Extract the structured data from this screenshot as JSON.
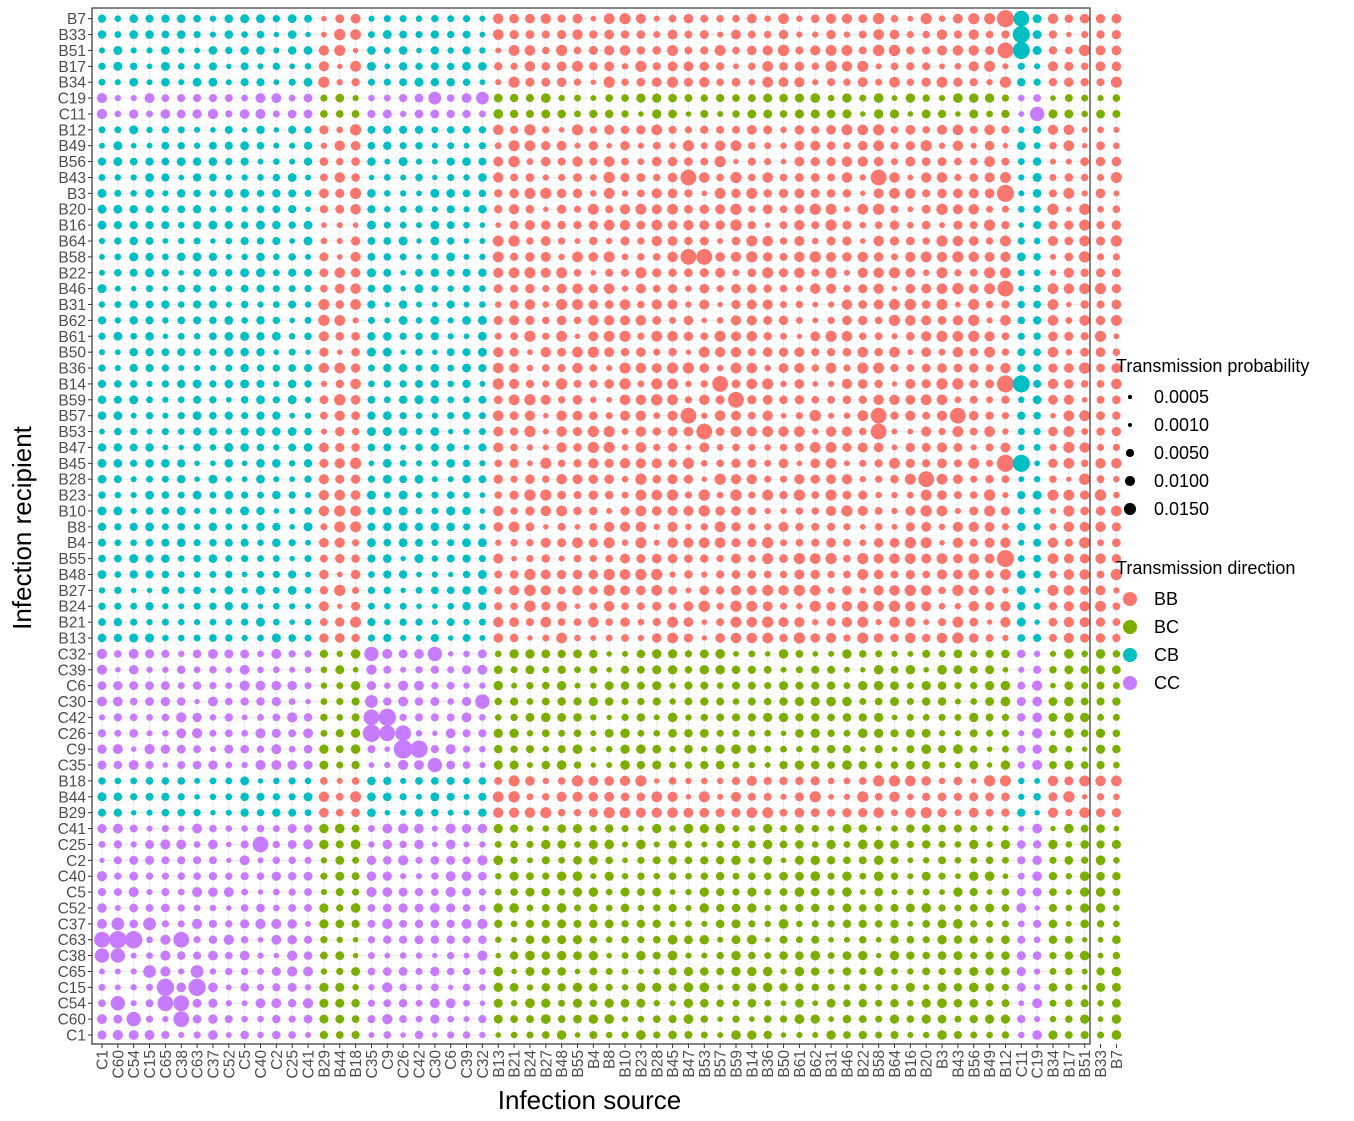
{
  "chart_data": {
    "type": "scatter",
    "xlabel": "Infection source",
    "ylabel": "Infection recipient",
    "source_labels": [
      "C1",
      "C60",
      "C54",
      "C15",
      "C65",
      "C38",
      "C63",
      "C37",
      "C52",
      "C5",
      "C40",
      "C2",
      "C25",
      "C41",
      "B29",
      "B44",
      "B18",
      "C35",
      "C9",
      "C26",
      "C42",
      "C30",
      "C6",
      "C39",
      "C32",
      "B13",
      "B21",
      "B24",
      "B27",
      "B48",
      "B55",
      "B4",
      "B8",
      "B10",
      "B23",
      "B28",
      "B45",
      "B47",
      "B53",
      "B57",
      "B59",
      "B14",
      "B36",
      "B50",
      "B61",
      "B62",
      "B31",
      "B46",
      "B22",
      "B58",
      "B64",
      "B16",
      "B20",
      "B3",
      "B43",
      "B56",
      "B49",
      "B12",
      "C11",
      "C19",
      "B34",
      "B17",
      "B51",
      "B33",
      "B7"
    ],
    "recipient_labels_bottom_to_top": [
      "C1",
      "C60",
      "C54",
      "C15",
      "C65",
      "C38",
      "C63",
      "C37",
      "C52",
      "C5",
      "C40",
      "C2",
      "C25",
      "C41",
      "B29",
      "B44",
      "B18",
      "C35",
      "C9",
      "C26",
      "C42",
      "C30",
      "C6",
      "C39",
      "C32",
      "B13",
      "B21",
      "B24",
      "B27",
      "B48",
      "B55",
      "B4",
      "B8",
      "B10",
      "B23",
      "B28",
      "B45",
      "B47",
      "B53",
      "B57",
      "B59",
      "B14",
      "B36",
      "B50",
      "B61",
      "B62",
      "B31",
      "B46",
      "B22",
      "B58",
      "B64",
      "B16",
      "B20",
      "B3",
      "B43",
      "B56",
      "B49",
      "B12",
      "C11",
      "C19",
      "B34",
      "B17",
      "B51",
      "B33",
      "B7"
    ],
    "size_legend": {
      "title": "Transmission probability",
      "breaks": [
        0.0005,
        0.001,
        0.005,
        0.01,
        0.015
      ],
      "labels": [
        "0.0005",
        "0.0010",
        "0.0050",
        "0.0100",
        "0.0150"
      ]
    },
    "color_legend": {
      "title": "Transmission direction",
      "categories": [
        {
          "label": "BB",
          "color": "#F8766D"
        },
        {
          "label": "BC",
          "color": "#7CAE00"
        },
        {
          "label": "CB",
          "color": "#00BFC4"
        },
        {
          "label": "CC",
          "color": "#C77CFF"
        }
      ]
    },
    "grid": true,
    "panel_border": true,
    "highlight_pairs": [
      {
        "source": "B53",
        "recipient": "B58",
        "p": 0.01
      },
      {
        "source": "B47",
        "recipient": "B58",
        "p": 0.01
      },
      {
        "source": "B47",
        "recipient": "B57",
        "p": 0.01
      },
      {
        "source": "B53",
        "recipient": "B53",
        "p": 0.01
      },
      {
        "source": "B58",
        "recipient": "B53",
        "p": 0.01
      },
      {
        "source": "B58",
        "recipient": "B57",
        "p": 0.01
      },
      {
        "source": "B43",
        "recipient": "B57",
        "p": 0.01
      },
      {
        "source": "B47",
        "recipient": "B43",
        "p": 0.01
      },
      {
        "source": "B58",
        "recipient": "B43",
        "p": 0.01
      },
      {
        "source": "B20",
        "recipient": "B28",
        "p": 0.01
      },
      {
        "source": "C35",
        "recipient": "C26",
        "p": 0.0125
      },
      {
        "source": "C9",
        "recipient": "C42",
        "p": 0.0125
      },
      {
        "source": "C26",
        "recipient": "C9",
        "p": 0.015
      },
      {
        "source": "C42",
        "recipient": "C9",
        "p": 0.0125
      },
      {
        "source": "C35",
        "recipient": "C42",
        "p": 0.01
      },
      {
        "source": "C26",
        "recipient": "C26",
        "p": 0.01
      },
      {
        "source": "C9",
        "recipient": "C26",
        "p": 0.01
      },
      {
        "source": "C30",
        "recipient": "C35",
        "p": 0.008
      },
      {
        "source": "C40",
        "recipient": "C25",
        "p": 0.01
      },
      {
        "source": "C60",
        "recipient": "C63",
        "p": 0.0125
      },
      {
        "source": "C54",
        "recipient": "C63",
        "p": 0.0125
      },
      {
        "source": "C1",
        "recipient": "C63",
        "p": 0.01
      },
      {
        "source": "C38",
        "recipient": "C63",
        "p": 0.01
      },
      {
        "source": "C60",
        "recipient": "C38",
        "p": 0.008
      },
      {
        "source": "C1",
        "recipient": "C38",
        "p": 0.008
      },
      {
        "source": "C65",
        "recipient": "C15",
        "p": 0.0125
      },
      {
        "source": "C63",
        "recipient": "C15",
        "p": 0.0125
      },
      {
        "source": "C38",
        "recipient": "C54",
        "p": 0.01
      },
      {
        "source": "C65",
        "recipient": "C54",
        "p": 0.01
      },
      {
        "source": "C38",
        "recipient": "C60",
        "p": 0.01
      },
      {
        "source": "C60",
        "recipient": "C54",
        "p": 0.008
      },
      {
        "source": "C54",
        "recipient": "C60",
        "p": 0.008
      },
      {
        "source": "C15",
        "recipient": "C37",
        "p": 0.006
      },
      {
        "source": "C15",
        "recipient": "C65",
        "p": 0.006
      },
      {
        "source": "C63",
        "recipient": "C65",
        "p": 0.006
      },
      {
        "source": "C60",
        "recipient": "C37",
        "p": 0.006
      },
      {
        "source": "C35",
        "recipient": "C32",
        "p": 0.008
      },
      {
        "source": "C30",
        "recipient": "C32",
        "p": 0.008
      },
      {
        "source": "C32",
        "recipient": "C30",
        "p": 0.008
      },
      {
        "source": "C35",
        "recipient": "C30",
        "p": 0.006
      },
      {
        "source": "C30",
        "recipient": "C19",
        "p": 0.006
      },
      {
        "source": "C32",
        "recipient": "C19",
        "p": 0.006
      },
      {
        "source": "C19",
        "recipient": "C11",
        "p": 0.008
      },
      {
        "source": "B59",
        "recipient": "B59",
        "p": 0.01
      },
      {
        "source": "B57",
        "recipient": "B14",
        "p": 0.01
      },
      {
        "source": "B12",
        "recipient": "B14",
        "p": 0.012
      },
      {
        "source": "C11",
        "recipient": "B14",
        "p": 0.012
      },
      {
        "source": "B12",
        "recipient": "B45",
        "p": 0.012
      },
      {
        "source": "C11",
        "recipient": "B45",
        "p": 0.012
      },
      {
        "source": "B12",
        "recipient": "B55",
        "p": 0.012
      },
      {
        "source": "B12",
        "recipient": "B3",
        "p": 0.012
      },
      {
        "source": "B12",
        "recipient": "B7",
        "p": 0.012
      },
      {
        "source": "C11",
        "recipient": "B7",
        "p": 0.01
      },
      {
        "source": "B12",
        "recipient": "B51",
        "p": 0.01
      },
      {
        "source": "B12",
        "recipient": "B46",
        "p": 0.01
      },
      {
        "source": "C11",
        "recipient": "B51",
        "p": 0.012
      },
      {
        "source": "C11",
        "recipient": "B33",
        "p": 0.012
      }
    ]
  }
}
